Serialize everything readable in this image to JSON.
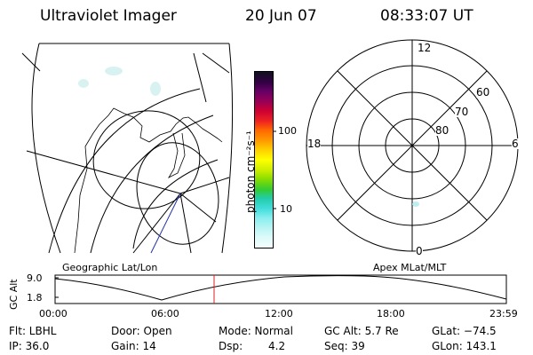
{
  "header": {
    "instrument": "Ultraviolet Imager",
    "date": "20 Jun 07",
    "time": "08:33:07 UT"
  },
  "colorbar": {
    "unit_label": "photon cm⁻²s⁻¹",
    "ticks": [
      "100",
      "10"
    ],
    "colors": [
      "#111122",
      "#330044",
      "#660066",
      "#990055",
      "#cc0033",
      "#ee2222",
      "#ff6600",
      "#ff9900",
      "#ffcc00",
      "#ffff00",
      "#ccee00",
      "#88dd00",
      "#33cc33",
      "#22ccaa",
      "#44dddd",
      "#88eeee",
      "#bbf4f4",
      "#ddfafa",
      "#f4fdfd"
    ]
  },
  "polar_plot": {
    "lat_labels": [
      "60",
      "70",
      "80"
    ],
    "mlt_labels": {
      "top": "12",
      "left": "18",
      "right": "6",
      "bottom": "0"
    }
  },
  "altitude_plot": {
    "left_title": "Geographic Lat/Lon",
    "right_title": "Apex MLat/MLT",
    "axis_label": "GC Alt",
    "y_ticks": [
      "9.0",
      "1.8"
    ],
    "x_ticks": [
      "00:00",
      "06:00",
      "12:00",
      "18:00",
      "23:59"
    ]
  },
  "info": {
    "row1": {
      "filter": "Flt: LBHL",
      "door": "Door: Open",
      "mode": "Mode: Normal",
      "gc_alt": "GC Alt: 5.7 Re",
      "glat": "GLat: −74.5"
    },
    "row2": {
      "ip": "IP: 36.0",
      "gain": "Gain: 14",
      "dsp_label": "Dsp:",
      "dsp_value": "4.2",
      "seq": "Seq: 39",
      "glon": "GLon: 143.1"
    }
  }
}
